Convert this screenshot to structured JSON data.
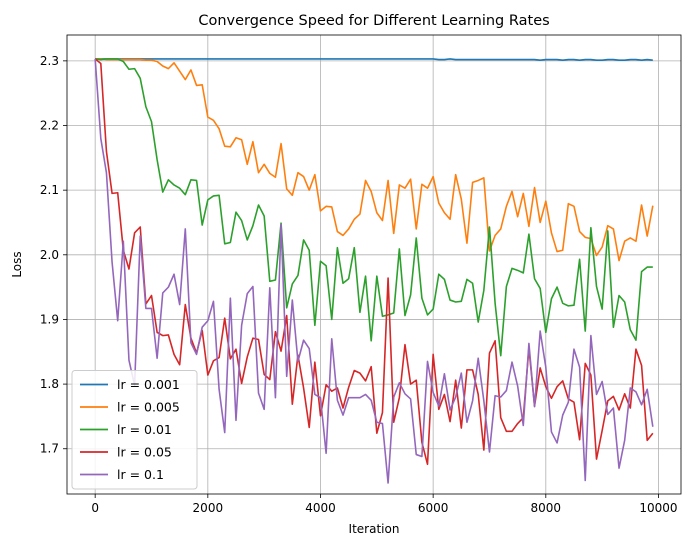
{
  "chart_data": {
    "type": "line",
    "title": "Convergence Speed for Different Learning Rates",
    "xlabel": "Iteration",
    "ylabel": "Loss",
    "xlim": [
      -500,
      10400
    ],
    "ylim": [
      1.63,
      2.34
    ],
    "xticks": [
      0,
      2000,
      4000,
      6000,
      8000,
      10000
    ],
    "yticks": [
      1.7,
      1.8,
      1.9,
      2.0,
      2.1,
      2.2,
      2.3
    ],
    "grid": true,
    "legend_position": "lower-left",
    "x": [
      0,
      100,
      200,
      300,
      400,
      500,
      600,
      700,
      800,
      900,
      1000,
      1100,
      1200,
      1300,
      1400,
      1500,
      1600,
      1700,
      1800,
      1900,
      2000,
      2100,
      2200,
      2300,
      2400,
      2500,
      2600,
      2700,
      2800,
      2900,
      3000,
      3100,
      3200,
      3300,
      3400,
      3500,
      3600,
      3700,
      3800,
      3900,
      4000,
      4100,
      4200,
      4300,
      4400,
      4500,
      4600,
      4700,
      4800,
      4900,
      5000,
      5100,
      5200,
      5300,
      5400,
      5500,
      5600,
      5700,
      5800,
      5900,
      6000,
      6100,
      6200,
      6300,
      6400,
      6500,
      6600,
      6700,
      6800,
      6900,
      7000,
      7100,
      7200,
      7300,
      7400,
      7500,
      7600,
      7700,
      7800,
      7900,
      8000,
      8100,
      8200,
      8300,
      8400,
      8500,
      8600,
      8700,
      8800,
      8900,
      9000,
      9100,
      9200,
      9300,
      9400,
      9500,
      9600,
      9700,
      9800,
      9900
    ],
    "series": [
      {
        "name": "lr = 0.001",
        "color": "#1f77b4",
        "values": [
          2.303,
          2.303,
          2.303,
          2.303,
          2.303,
          2.303,
          2.303,
          2.303,
          2.303,
          2.303,
          2.303,
          2.303,
          2.303,
          2.303,
          2.303,
          2.303,
          2.303,
          2.303,
          2.303,
          2.303,
          2.303,
          2.303,
          2.303,
          2.303,
          2.303,
          2.303,
          2.303,
          2.303,
          2.303,
          2.303,
          2.303,
          2.303,
          2.303,
          2.303,
          2.303,
          2.303,
          2.303,
          2.303,
          2.303,
          2.303,
          2.303,
          2.303,
          2.303,
          2.303,
          2.303,
          2.303,
          2.303,
          2.303,
          2.303,
          2.303,
          2.303,
          2.303,
          2.303,
          2.303,
          2.303,
          2.303,
          2.303,
          2.303,
          2.303,
          2.303,
          2.303,
          2.302,
          2.302,
          2.303,
          2.302,
          2.302,
          2.302,
          2.302,
          2.302,
          2.302,
          2.302,
          2.302,
          2.302,
          2.302,
          2.302,
          2.302,
          2.302,
          2.302,
          2.302,
          2.301,
          2.302,
          2.302,
          2.302,
          2.301,
          2.302,
          2.302,
          2.301,
          2.302,
          2.302,
          2.301,
          2.301,
          2.302,
          2.302,
          2.301,
          2.301,
          2.302,
          2.302,
          2.301,
          2.302,
          2.301
        ]
      },
      {
        "name": "lr = 0.005",
        "color": "#ff7f0e",
        "values": [
          2.303,
          2.303,
          2.302,
          2.302,
          2.302,
          2.302,
          2.302,
          2.302,
          2.302,
          2.301,
          2.301,
          2.299,
          2.292,
          2.288,
          2.297,
          2.284,
          2.271,
          2.286,
          2.262,
          2.263,
          2.213,
          2.208,
          2.195,
          2.168,
          2.167,
          2.181,
          2.178,
          2.14,
          2.175,
          2.127,
          2.14,
          2.126,
          2.12,
          2.172,
          2.102,
          2.092,
          2.127,
          2.121,
          2.1,
          2.124,
          2.068,
          2.075,
          2.074,
          2.036,
          2.03,
          2.04,
          2.055,
          2.063,
          2.115,
          2.098,
          2.065,
          2.053,
          2.115,
          2.033,
          2.108,
          2.103,
          2.117,
          2.04,
          2.109,
          2.103,
          2.121,
          2.08,
          2.065,
          2.055,
          2.124,
          2.086,
          2.018,
          2.112,
          2.115,
          2.119,
          2.006,
          2.03,
          2.04,
          2.075,
          2.098,
          2.059,
          2.095,
          2.044,
          2.104,
          2.05,
          2.083,
          2.034,
          2.005,
          2.007,
          2.079,
          2.075,
          2.036,
          2.027,
          2.025,
          1.999,
          2.012,
          2.045,
          2.04,
          1.991,
          2.021,
          2.026,
          2.021,
          2.077,
          2.029,
          2.076
        ]
      },
      {
        "name": "lr = 0.01",
        "color": "#2ca02c",
        "values": [
          2.303,
          2.302,
          2.303,
          2.303,
          2.303,
          2.299,
          2.287,
          2.288,
          2.273,
          2.229,
          2.206,
          2.147,
          2.097,
          2.116,
          2.108,
          2.103,
          2.093,
          2.116,
          2.115,
          2.046,
          2.085,
          2.091,
          2.092,
          2.017,
          2.019,
          2.066,
          2.053,
          2.023,
          2.045,
          2.077,
          2.06,
          1.959,
          1.961,
          2.049,
          1.918,
          1.955,
          1.968,
          2.023,
          2.007,
          1.891,
          1.99,
          1.983,
          1.9,
          2.011,
          1.956,
          1.963,
          2.011,
          1.911,
          1.967,
          1.867,
          1.967,
          1.905,
          1.907,
          1.91,
          2.009,
          1.906,
          1.938,
          2.026,
          1.933,
          1.907,
          1.916,
          1.97,
          1.962,
          1.93,
          1.927,
          1.928,
          1.962,
          1.956,
          1.896,
          1.945,
          2.043,
          1.925,
          1.844,
          1.951,
          1.979,
          1.976,
          1.972,
          2.032,
          1.963,
          1.948,
          1.88,
          1.932,
          1.95,
          1.925,
          1.921,
          1.922,
          1.993,
          1.882,
          2.042,
          1.951,
          1.916,
          2.037,
          1.888,
          1.937,
          1.927,
          1.884,
          1.868,
          1.974,
          1.981,
          1.981
        ]
      },
      {
        "name": "lr = 0.05",
        "color": "#d62728",
        "values": [
          2.303,
          2.296,
          2.16,
          2.095,
          2.096,
          2.007,
          1.978,
          2.034,
          2.043,
          1.924,
          1.937,
          1.88,
          1.875,
          1.876,
          1.846,
          1.83,
          1.923,
          1.871,
          1.848,
          1.883,
          1.814,
          1.836,
          1.841,
          1.902,
          1.839,
          1.854,
          1.801,
          1.842,
          1.871,
          1.869,
          1.815,
          1.807,
          1.881,
          1.851,
          1.906,
          1.769,
          1.845,
          1.794,
          1.733,
          1.834,
          1.751,
          1.799,
          1.789,
          1.794,
          1.763,
          1.795,
          1.821,
          1.817,
          1.805,
          1.827,
          1.724,
          1.756,
          1.964,
          1.741,
          1.779,
          1.861,
          1.8,
          1.806,
          1.71,
          1.676,
          1.846,
          1.761,
          1.784,
          1.742,
          1.806,
          1.732,
          1.822,
          1.822,
          1.784,
          1.698,
          1.848,
          1.867,
          1.748,
          1.727,
          1.727,
          1.739,
          1.748,
          1.856,
          1.766,
          1.825,
          1.796,
          1.778,
          1.796,
          1.805,
          1.777,
          1.772,
          1.714,
          1.832,
          1.814,
          1.684,
          1.728,
          1.774,
          1.781,
          1.76,
          1.785,
          1.763,
          1.854,
          1.829,
          1.713,
          1.724
        ]
      },
      {
        "name": "lr = 0.1",
        "color": "#9467bd",
        "values": [
          2.303,
          2.18,
          2.127,
          1.989,
          1.898,
          2.021,
          1.837,
          1.798,
          2.029,
          1.917,
          1.917,
          1.84,
          1.941,
          1.95,
          1.97,
          1.923,
          2.04,
          1.864,
          1.846,
          1.888,
          1.898,
          1.928,
          1.792,
          1.725,
          1.933,
          1.744,
          1.891,
          1.94,
          1.951,
          1.786,
          1.761,
          1.949,
          1.779,
          2.047,
          1.812,
          1.93,
          1.835,
          1.868,
          1.855,
          1.784,
          1.779,
          1.693,
          1.87,
          1.775,
          1.752,
          1.779,
          1.779,
          1.779,
          1.784,
          1.775,
          1.741,
          1.739,
          1.647,
          1.78,
          1.802,
          1.785,
          1.777,
          1.691,
          1.688,
          1.835,
          1.787,
          1.766,
          1.816,
          1.76,
          1.78,
          1.817,
          1.741,
          1.774,
          1.84,
          1.774,
          1.695,
          1.782,
          1.78,
          1.79,
          1.834,
          1.797,
          1.736,
          1.863,
          1.765,
          1.882,
          1.826,
          1.726,
          1.709,
          1.752,
          1.772,
          1.854,
          1.826,
          1.651,
          1.875,
          1.784,
          1.804,
          1.753,
          1.763,
          1.67,
          1.713,
          1.794,
          1.788,
          1.768,
          1.792,
          1.734
        ]
      }
    ]
  }
}
